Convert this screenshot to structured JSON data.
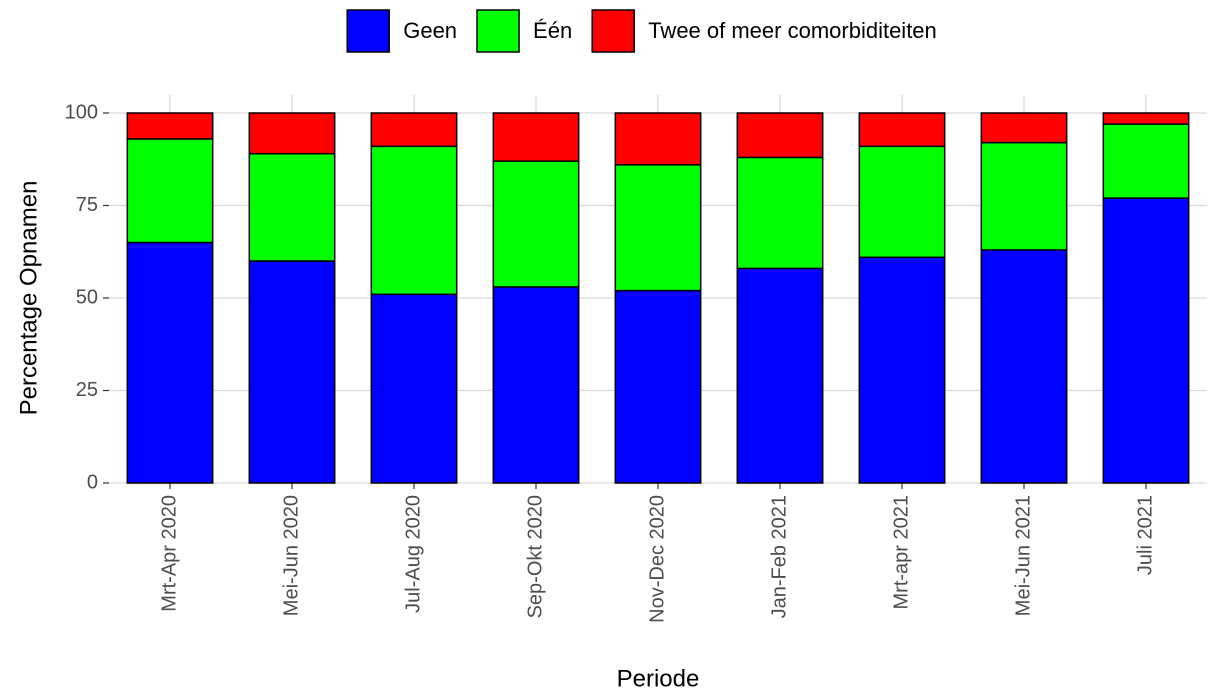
{
  "chart_data": {
    "type": "stacked_bar",
    "categories": [
      "Mrt-Apr 2020",
      "Mei-Jun 2020",
      "Jul-Aug 2020",
      "Sep-Okt 2020",
      "Nov-Dec 2020",
      "Jan-Feb 2021",
      "Mrt-apr 2021",
      "Mei-Jun 2021",
      "Juli 2021"
    ],
    "series": [
      {
        "name": "Geen",
        "color": "#0000ff",
        "values": [
          65,
          60,
          51,
          53,
          52,
          58,
          61,
          63,
          77
        ]
      },
      {
        "name": "Één",
        "color": "#00ff00",
        "values": [
          28,
          29,
          40,
          34,
          34,
          30,
          30,
          29,
          20
        ]
      },
      {
        "name": "Twee of meer comorbiditeiten",
        "color": "#ff0000",
        "values": [
          7,
          11,
          9,
          13,
          14,
          12,
          9,
          8,
          3
        ]
      }
    ],
    "x_label": "Periode",
    "y_label": "Percentage Opnamen",
    "ylim": [
      0,
      100
    ],
    "yticks": [
      0,
      25,
      50,
      75,
      100
    ],
    "grid": true,
    "legend": "top"
  }
}
